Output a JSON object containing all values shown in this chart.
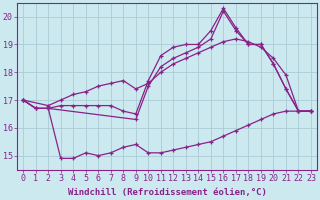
{
  "background_color": "#cce9f0",
  "grid_color": "#aaccd4",
  "line_color": "#882288",
  "xlabel": "Windchill (Refroidissement éolien,°C)",
  "xlabel_fontsize": 6.5,
  "tick_fontsize": 6.0,
  "xlim": [
    -0.5,
    23.5
  ],
  "ylim": [
    14.5,
    20.5
  ],
  "yticks": [
    15,
    16,
    17,
    18,
    19,
    20
  ],
  "xticks": [
    0,
    1,
    2,
    3,
    4,
    5,
    6,
    7,
    8,
    9,
    10,
    11,
    12,
    13,
    14,
    15,
    16,
    17,
    18,
    19,
    20,
    21,
    22,
    23
  ],
  "line1_x": [
    0,
    1,
    2,
    3,
    4,
    5,
    6,
    7,
    8,
    9,
    10,
    11,
    12,
    13,
    14,
    15,
    16,
    17,
    18,
    19,
    20,
    21,
    22,
    23
  ],
  "line1_y": [
    17.0,
    16.7,
    16.7,
    16.8,
    16.8,
    16.8,
    16.8,
    16.8,
    16.6,
    16.5,
    17.7,
    18.6,
    18.9,
    19.0,
    19.0,
    19.5,
    20.3,
    19.6,
    19.0,
    19.0,
    18.3,
    17.4,
    16.6,
    16.6
  ],
  "line2_x": [
    0,
    2,
    3,
    4,
    5,
    6,
    7,
    8,
    9,
    10,
    11,
    12,
    13,
    14,
    15,
    16,
    17,
    18,
    19,
    20,
    21,
    22,
    23
  ],
  "line2_y": [
    17.0,
    16.8,
    17.0,
    17.2,
    17.3,
    17.5,
    17.6,
    17.7,
    17.4,
    17.6,
    18.0,
    18.3,
    18.5,
    18.7,
    18.9,
    19.1,
    19.2,
    19.1,
    18.9,
    18.5,
    17.9,
    16.6,
    16.6
  ],
  "line3_x": [
    0,
    1,
    2,
    9,
    10,
    11,
    12,
    13,
    14,
    15,
    16,
    17,
    18,
    19,
    20,
    21,
    22,
    23
  ],
  "line3_y": [
    17.0,
    16.7,
    16.7,
    16.3,
    17.5,
    18.2,
    18.5,
    18.7,
    18.9,
    19.2,
    20.2,
    19.5,
    19.0,
    19.0,
    18.3,
    17.4,
    16.6,
    16.6
  ],
  "line4_x": [
    0,
    1,
    2,
    3,
    4,
    5,
    6,
    7,
    8,
    9,
    10,
    11,
    12,
    13,
    14,
    15,
    16,
    17,
    18,
    19,
    20,
    21,
    22,
    23
  ],
  "line4_y": [
    17.0,
    16.7,
    16.7,
    14.9,
    14.9,
    15.1,
    15.0,
    15.1,
    15.3,
    15.4,
    15.1,
    15.1,
    15.2,
    15.3,
    15.4,
    15.5,
    15.7,
    15.9,
    16.1,
    16.3,
    16.5,
    16.6,
    16.6,
    16.6
  ]
}
